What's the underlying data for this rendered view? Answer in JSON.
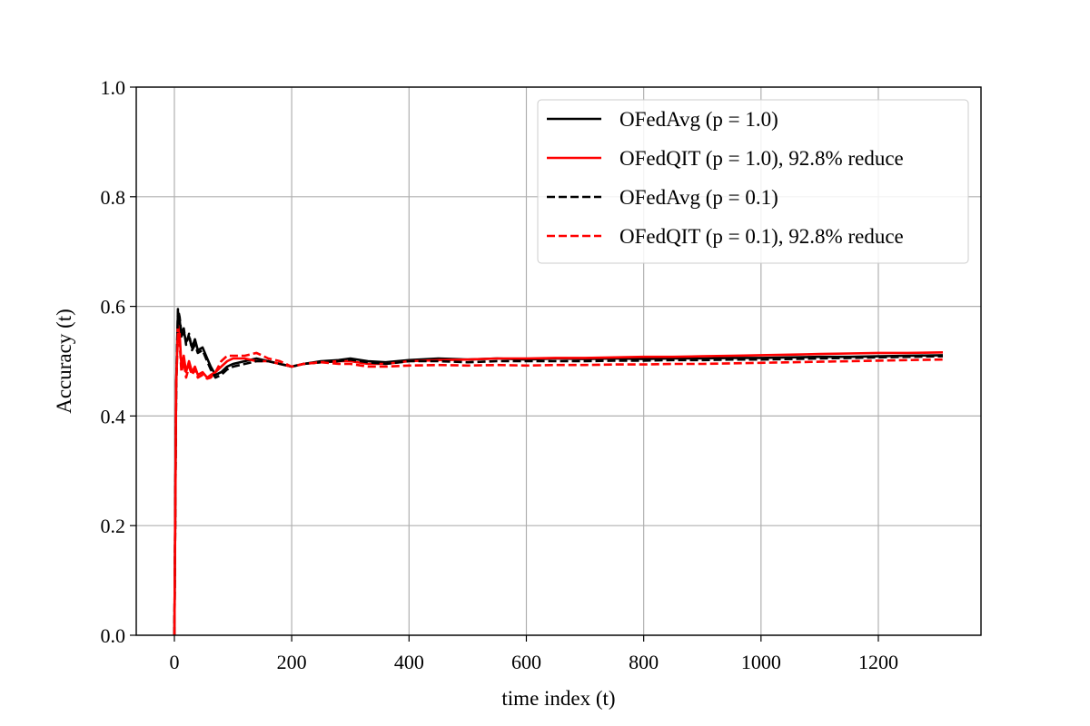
{
  "chart_data": {
    "type": "line",
    "title": "",
    "xlabel": "time index (t)",
    "ylabel": "Accuracy (t)",
    "xlim": [
      -65,
      1375
    ],
    "ylim": [
      0.0,
      1.0
    ],
    "xticks": [
      0,
      200,
      400,
      600,
      800,
      1000,
      1200
    ],
    "yticks": [
      0.0,
      0.2,
      0.4,
      0.6,
      0.8,
      1.0
    ],
    "xtick_labels": [
      "0",
      "200",
      "400",
      "600",
      "800",
      "1000",
      "1200"
    ],
    "ytick_labels": [
      "0.0",
      "0.2",
      "0.4",
      "0.6",
      "0.8",
      "1.0"
    ],
    "grid": true,
    "legend_position": "top-right",
    "series": [
      {
        "name": "OFedAvg (p = 1.0)",
        "color": "#000000",
        "dash": "solid",
        "x": [
          0,
          3,
          6,
          9,
          12,
          16,
          20,
          25,
          30,
          35,
          40,
          48,
          56,
          62,
          70,
          80,
          90,
          100,
          120,
          140,
          160,
          180,
          200,
          220,
          250,
          280,
          300,
          330,
          360,
          400,
          450,
          500,
          550,
          600,
          650,
          700,
          750,
          800,
          850,
          900,
          950,
          1000,
          1050,
          1100,
          1150,
          1200,
          1250,
          1310
        ],
        "y": [
          0.0,
          0.45,
          0.59,
          0.575,
          0.545,
          0.555,
          0.535,
          0.545,
          0.525,
          0.54,
          0.52,
          0.525,
          0.505,
          0.49,
          0.475,
          0.48,
          0.49,
          0.495,
          0.5,
          0.505,
          0.5,
          0.495,
          0.49,
          0.495,
          0.5,
          0.502,
          0.505,
          0.5,
          0.498,
          0.502,
          0.505,
          0.503,
          0.505,
          0.503,
          0.505,
          0.504,
          0.505,
          0.504,
          0.505,
          0.505,
          0.506,
          0.506,
          0.507,
          0.508,
          0.508,
          0.509,
          0.51,
          0.511
        ]
      },
      {
        "name": "OFedQIT (p = 1.0), 92.8% reduce",
        "color": "#ff0000",
        "dash": "solid",
        "x": [
          0,
          3,
          6,
          9,
          12,
          16,
          20,
          25,
          30,
          35,
          40,
          48,
          56,
          62,
          70,
          80,
          90,
          100,
          120,
          140,
          160,
          180,
          200,
          220,
          250,
          280,
          300,
          330,
          360,
          400,
          450,
          500,
          550,
          600,
          650,
          700,
          750,
          800,
          850,
          900,
          950,
          1000,
          1050,
          1100,
          1150,
          1200,
          1250,
          1310
        ],
        "y": [
          0.0,
          0.46,
          0.565,
          0.55,
          0.49,
          0.51,
          0.48,
          0.5,
          0.48,
          0.49,
          0.475,
          0.48,
          0.47,
          0.475,
          0.48,
          0.49,
          0.5,
          0.505,
          0.505,
          0.5,
          0.5,
          0.495,
          0.49,
          0.495,
          0.498,
          0.5,
          0.5,
          0.495,
          0.495,
          0.5,
          0.502,
          0.503,
          0.505,
          0.505,
          0.506,
          0.506,
          0.507,
          0.508,
          0.508,
          0.509,
          0.51,
          0.511,
          0.512,
          0.513,
          0.514,
          0.515,
          0.515,
          0.516
        ]
      },
      {
        "name": "OFedAvg (p = 0.1)",
        "color": "#000000",
        "dash": "dashed",
        "x": [
          0,
          3,
          6,
          9,
          12,
          16,
          20,
          25,
          30,
          35,
          40,
          48,
          56,
          62,
          70,
          80,
          90,
          100,
          120,
          140,
          160,
          180,
          200,
          220,
          250,
          280,
          300,
          330,
          360,
          400,
          450,
          500,
          550,
          600,
          650,
          700,
          750,
          800,
          850,
          900,
          950,
          1000,
          1050,
          1100,
          1150,
          1200,
          1250,
          1310
        ],
        "y": [
          0.0,
          0.44,
          0.595,
          0.58,
          0.55,
          0.56,
          0.53,
          0.55,
          0.52,
          0.53,
          0.515,
          0.52,
          0.5,
          0.485,
          0.47,
          0.475,
          0.485,
          0.49,
          0.495,
          0.5,
          0.5,
          0.495,
          0.49,
          0.495,
          0.498,
          0.5,
          0.503,
          0.498,
          0.495,
          0.5,
          0.5,
          0.498,
          0.5,
          0.5,
          0.5,
          0.5,
          0.501,
          0.501,
          0.502,
          0.502,
          0.503,
          0.503,
          0.504,
          0.505,
          0.506,
          0.507,
          0.508,
          0.509
        ]
      },
      {
        "name": "OFedQIT (p = 0.1), 92.8% reduce",
        "color": "#ff0000",
        "dash": "dashed",
        "x": [
          0,
          3,
          6,
          9,
          12,
          16,
          20,
          25,
          30,
          35,
          40,
          48,
          56,
          62,
          70,
          80,
          90,
          100,
          120,
          140,
          160,
          180,
          200,
          220,
          250,
          280,
          300,
          330,
          360,
          400,
          450,
          500,
          550,
          600,
          650,
          700,
          750,
          800,
          850,
          900,
          950,
          1000,
          1050,
          1100,
          1150,
          1200,
          1250,
          1310
        ],
        "y": [
          0.0,
          0.45,
          0.55,
          0.535,
          0.48,
          0.5,
          0.47,
          0.49,
          0.475,
          0.485,
          0.47,
          0.475,
          0.468,
          0.47,
          0.48,
          0.5,
          0.51,
          0.51,
          0.51,
          0.515,
          0.505,
          0.5,
          0.49,
          0.495,
          0.498,
          0.495,
          0.495,
          0.49,
          0.49,
          0.492,
          0.493,
          0.492,
          0.493,
          0.492,
          0.493,
          0.493,
          0.494,
          0.494,
          0.495,
          0.495,
          0.496,
          0.497,
          0.498,
          0.499,
          0.5,
          0.501,
          0.502,
          0.503
        ]
      }
    ]
  }
}
